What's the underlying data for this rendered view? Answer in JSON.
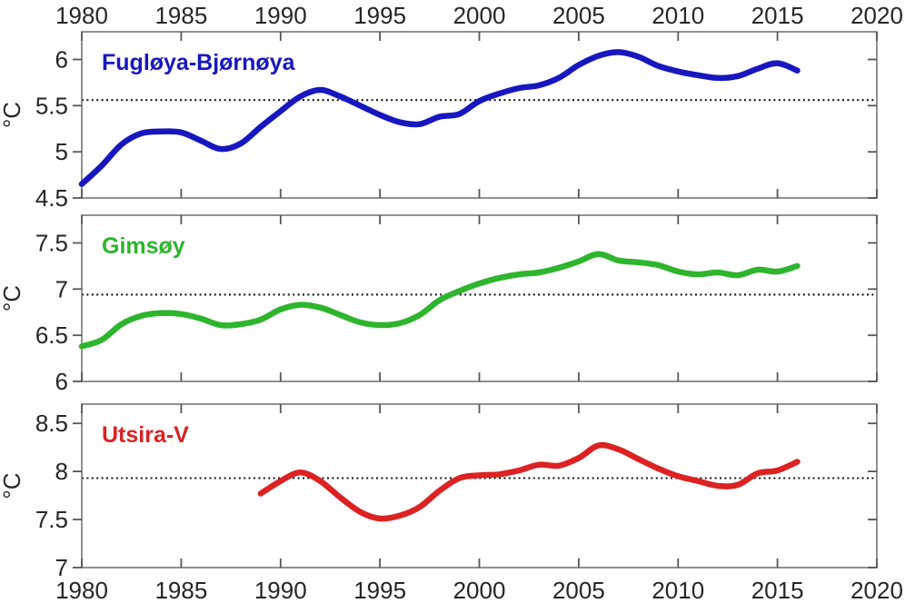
{
  "figure": {
    "background": "#ffffff",
    "axis_color": "#767676",
    "tick_color": "#565656",
    "tick_label_color": "#262626",
    "mean_line_color": "#141414",
    "unit_label": "°C"
  },
  "x_axis": {
    "min": 1980,
    "max": 2020,
    "tick_step": 5,
    "tick_labels": [
      "1980",
      "1985",
      "1990",
      "1995",
      "2000",
      "2005",
      "2010",
      "2015",
      "2020"
    ]
  },
  "chart_data": [
    {
      "type": "line",
      "title": "Fugløya-Bjørnøya",
      "color": "#1717c0",
      "ylabel": "°C",
      "ylim": [
        4.5,
        6.3
      ],
      "yticks": [
        4.5,
        5,
        5.5,
        6
      ],
      "ytick_labels": [
        "4.5",
        "5",
        "5.5",
        "6"
      ],
      "mean_line": 5.56,
      "x": [
        1980,
        1981,
        1982,
        1983,
        1984,
        1985,
        1986,
        1987,
        1988,
        1989,
        1990,
        1991,
        1992,
        1993,
        1994,
        1995,
        1996,
        1997,
        1998,
        1999,
        2000,
        2001,
        2002,
        2003,
        2004,
        2005,
        2006,
        2007,
        2008,
        2009,
        2010,
        2011,
        2012,
        2013,
        2014,
        2015,
        2016
      ],
      "values": [
        4.65,
        4.85,
        5.08,
        5.2,
        5.22,
        5.21,
        5.12,
        5.03,
        5.09,
        5.27,
        5.44,
        5.6,
        5.67,
        5.6,
        5.5,
        5.4,
        5.32,
        5.3,
        5.38,
        5.41,
        5.55,
        5.63,
        5.69,
        5.72,
        5.8,
        5.94,
        6.04,
        6.08,
        6.03,
        5.93,
        5.87,
        5.83,
        5.8,
        5.82,
        5.9,
        5.96,
        5.88
      ]
    },
    {
      "type": "line",
      "title": "Gimsøy",
      "color": "#2db52d",
      "ylabel": "°C",
      "ylim": [
        6.0,
        7.8
      ],
      "yticks": [
        6,
        6.5,
        7,
        7.5
      ],
      "ytick_labels": [
        "6",
        "6.5",
        "7",
        "7.5"
      ],
      "mean_line": 6.94,
      "x": [
        1980,
        1981,
        1982,
        1983,
        1984,
        1985,
        1986,
        1987,
        1988,
        1989,
        1990,
        1991,
        1992,
        1993,
        1994,
        1995,
        1996,
        1997,
        1998,
        1999,
        2000,
        2001,
        2002,
        2003,
        2004,
        2005,
        2006,
        2007,
        2008,
        2009,
        2010,
        2011,
        2012,
        2013,
        2014,
        2015,
        2016
      ],
      "values": [
        6.38,
        6.45,
        6.62,
        6.71,
        6.74,
        6.73,
        6.68,
        6.61,
        6.62,
        6.67,
        6.78,
        6.83,
        6.8,
        6.72,
        6.64,
        6.61,
        6.63,
        6.72,
        6.88,
        6.98,
        7.06,
        7.12,
        7.16,
        7.18,
        7.23,
        7.3,
        7.38,
        7.31,
        7.29,
        7.26,
        7.19,
        7.16,
        7.18,
        7.15,
        7.21,
        7.19,
        7.25
      ]
    },
    {
      "type": "line",
      "title": "Utsira-V",
      "color": "#dc2222",
      "ylabel": "°C",
      "ylim": [
        7.0,
        8.7
      ],
      "yticks": [
        7,
        7.5,
        8,
        8.5
      ],
      "ytick_labels": [
        "7",
        "7.5",
        "8",
        "8.5"
      ],
      "mean_line": 7.93,
      "x": [
        1989,
        1990,
        1991,
        1992,
        1993,
        1994,
        1995,
        1996,
        1997,
        1998,
        1999,
        2000,
        2001,
        2002,
        2003,
        2004,
        2005,
        2006,
        2007,
        2008,
        2009,
        2010,
        2011,
        2012,
        2013,
        2014,
        2015,
        2016
      ],
      "values": [
        7.77,
        7.9,
        7.99,
        7.9,
        7.73,
        7.58,
        7.51,
        7.54,
        7.63,
        7.8,
        7.93,
        7.96,
        7.97,
        8.01,
        8.07,
        8.06,
        8.14,
        8.27,
        8.23,
        8.13,
        8.03,
        7.95,
        7.9,
        7.85,
        7.86,
        7.98,
        8.01,
        8.1
      ]
    }
  ]
}
